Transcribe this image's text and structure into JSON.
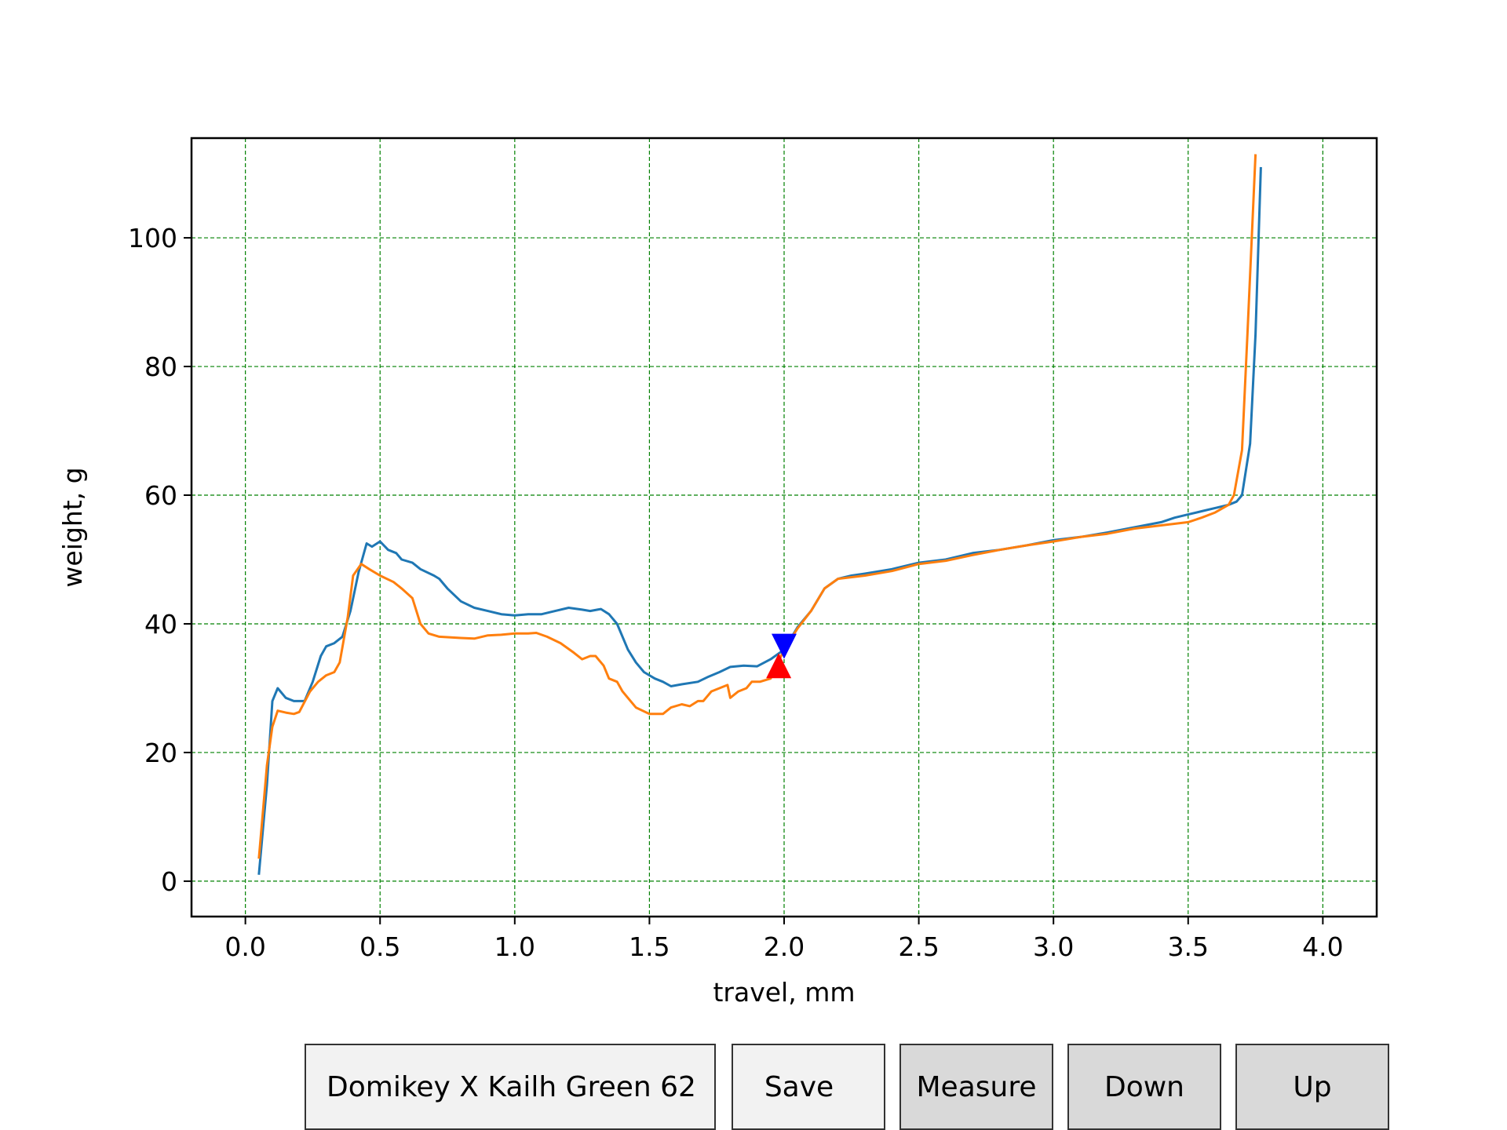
{
  "chart_data": {
    "type": "line",
    "title": "",
    "xlabel": "travel, mm",
    "ylabel": "weight, g",
    "xlim": [
      -0.2,
      4.2
    ],
    "ylim": [
      -5.5,
      115.5
    ],
    "xticks": [
      "0.0",
      "0.5",
      "1.0",
      "1.5",
      "2.0",
      "2.5",
      "3.0",
      "3.5",
      "4.0"
    ],
    "yticks": [
      "0",
      "20",
      "40",
      "60",
      "80",
      "100"
    ],
    "grid": true,
    "grid_color": "#008000",
    "series": [
      {
        "color": "#1f77b4",
        "points": [
          [
            0.05,
            1
          ],
          [
            0.08,
            15
          ],
          [
            0.1,
            28
          ],
          [
            0.12,
            30
          ],
          [
            0.15,
            28.5
          ],
          [
            0.18,
            28
          ],
          [
            0.22,
            28
          ],
          [
            0.25,
            31
          ],
          [
            0.28,
            35
          ],
          [
            0.3,
            36.5
          ],
          [
            0.33,
            37
          ],
          [
            0.36,
            38
          ],
          [
            0.39,
            42
          ],
          [
            0.42,
            48
          ],
          [
            0.45,
            52.5
          ],
          [
            0.47,
            52
          ],
          [
            0.5,
            52.8
          ],
          [
            0.53,
            51.5
          ],
          [
            0.56,
            51
          ],
          [
            0.58,
            50
          ],
          [
            0.62,
            49.5
          ],
          [
            0.65,
            48.5
          ],
          [
            0.7,
            47.5
          ],
          [
            0.72,
            47
          ],
          [
            0.75,
            45.5
          ],
          [
            0.8,
            43.5
          ],
          [
            0.85,
            42.5
          ],
          [
            0.9,
            42
          ],
          [
            0.95,
            41.5
          ],
          [
            1.0,
            41.3
          ],
          [
            1.05,
            41.5
          ],
          [
            1.1,
            41.5
          ],
          [
            1.15,
            42
          ],
          [
            1.2,
            42.5
          ],
          [
            1.25,
            42.2
          ],
          [
            1.28,
            42
          ],
          [
            1.32,
            42.3
          ],
          [
            1.35,
            41.5
          ],
          [
            1.38,
            40
          ],
          [
            1.42,
            36
          ],
          [
            1.45,
            34
          ],
          [
            1.48,
            32.5
          ],
          [
            1.52,
            31.5
          ],
          [
            1.55,
            31
          ],
          [
            1.58,
            30.3
          ],
          [
            1.62,
            30.6
          ],
          [
            1.68,
            31
          ],
          [
            1.72,
            31.8
          ],
          [
            1.76,
            32.5
          ],
          [
            1.8,
            33.3
          ],
          [
            1.85,
            33.5
          ],
          [
            1.9,
            33.4
          ],
          [
            1.95,
            34.5
          ],
          [
            2.0,
            36
          ],
          [
            2.05,
            39.5
          ],
          [
            2.1,
            42
          ],
          [
            2.15,
            45.5
          ],
          [
            2.2,
            47
          ],
          [
            2.25,
            47.5
          ],
          [
            2.3,
            47.8
          ],
          [
            2.4,
            48.5
          ],
          [
            2.5,
            49.5
          ],
          [
            2.6,
            50
          ],
          [
            2.7,
            51
          ],
          [
            2.8,
            51.5
          ],
          [
            2.9,
            52.2
          ],
          [
            3.0,
            53
          ],
          [
            3.1,
            53.5
          ],
          [
            3.2,
            54.2
          ],
          [
            3.3,
            55
          ],
          [
            3.4,
            55.8
          ],
          [
            3.45,
            56.5
          ],
          [
            3.5,
            57
          ],
          [
            3.55,
            57.5
          ],
          [
            3.6,
            58
          ],
          [
            3.65,
            58.5
          ],
          [
            3.68,
            59
          ],
          [
            3.7,
            60
          ],
          [
            3.73,
            68
          ],
          [
            3.75,
            85
          ],
          [
            3.77,
            111
          ]
        ]
      },
      {
        "color": "#ff7f0e",
        "points": [
          [
            0.05,
            3.5
          ],
          [
            0.08,
            18
          ],
          [
            0.1,
            24
          ],
          [
            0.12,
            26.5
          ],
          [
            0.15,
            26.2
          ],
          [
            0.18,
            26
          ],
          [
            0.2,
            26.3
          ],
          [
            0.24,
            29.5
          ],
          [
            0.27,
            31
          ],
          [
            0.3,
            32
          ],
          [
            0.33,
            32.5
          ],
          [
            0.35,
            34
          ],
          [
            0.38,
            41
          ],
          [
            0.4,
            47.5
          ],
          [
            0.43,
            49.3
          ],
          [
            0.46,
            48.5
          ],
          [
            0.5,
            47.5
          ],
          [
            0.55,
            46.5
          ],
          [
            0.58,
            45.5
          ],
          [
            0.62,
            44
          ],
          [
            0.65,
            40
          ],
          [
            0.68,
            38.5
          ],
          [
            0.72,
            38
          ],
          [
            0.8,
            37.8
          ],
          [
            0.85,
            37.7
          ],
          [
            0.9,
            38.2
          ],
          [
            0.95,
            38.3
          ],
          [
            1.0,
            38.5
          ],
          [
            1.05,
            38.5
          ],
          [
            1.08,
            38.6
          ],
          [
            1.12,
            38
          ],
          [
            1.17,
            37
          ],
          [
            1.22,
            35.5
          ],
          [
            1.25,
            34.5
          ],
          [
            1.28,
            35
          ],
          [
            1.3,
            35
          ],
          [
            1.33,
            33.5
          ],
          [
            1.35,
            31.5
          ],
          [
            1.38,
            31
          ],
          [
            1.4,
            29.5
          ],
          [
            1.45,
            27
          ],
          [
            1.5,
            26
          ],
          [
            1.55,
            26
          ],
          [
            1.58,
            27
          ],
          [
            1.62,
            27.5
          ],
          [
            1.65,
            27.2
          ],
          [
            1.68,
            28
          ],
          [
            1.7,
            28
          ],
          [
            1.73,
            29.5
          ],
          [
            1.76,
            30
          ],
          [
            1.79,
            30.5
          ],
          [
            1.8,
            28.5
          ],
          [
            1.83,
            29.5
          ],
          [
            1.86,
            30
          ],
          [
            1.88,
            31
          ],
          [
            1.91,
            31
          ],
          [
            1.95,
            31.5
          ],
          [
            2.0,
            36
          ],
          [
            2.05,
            39.3
          ],
          [
            2.1,
            42
          ],
          [
            2.15,
            45.5
          ],
          [
            2.2,
            47
          ],
          [
            2.3,
            47.5
          ],
          [
            2.4,
            48.2
          ],
          [
            2.5,
            49.3
          ],
          [
            2.6,
            49.8
          ],
          [
            2.7,
            50.7
          ],
          [
            2.8,
            51.5
          ],
          [
            2.9,
            52.2
          ],
          [
            3.0,
            52.8
          ],
          [
            3.1,
            53.5
          ],
          [
            3.2,
            54
          ],
          [
            3.3,
            54.8
          ],
          [
            3.4,
            55.3
          ],
          [
            3.5,
            55.8
          ],
          [
            3.55,
            56.5
          ],
          [
            3.6,
            57.3
          ],
          [
            3.65,
            58.5
          ],
          [
            3.67,
            60
          ],
          [
            3.7,
            67
          ],
          [
            3.72,
            85
          ],
          [
            3.75,
            113
          ]
        ]
      }
    ],
    "markers": [
      {
        "shape": "triangle-down",
        "color": "#0000ff",
        "x": 2.0,
        "y": 36.5
      },
      {
        "shape": "triangle-up",
        "color": "#ff0000",
        "x": 1.98,
        "y": 33.5
      }
    ]
  },
  "controls": {
    "name_field_value": "Domikey X Kailh Green 62",
    "save_label": "Save",
    "measure_label": "Measure",
    "down_label": "Down",
    "up_label": "Up"
  }
}
